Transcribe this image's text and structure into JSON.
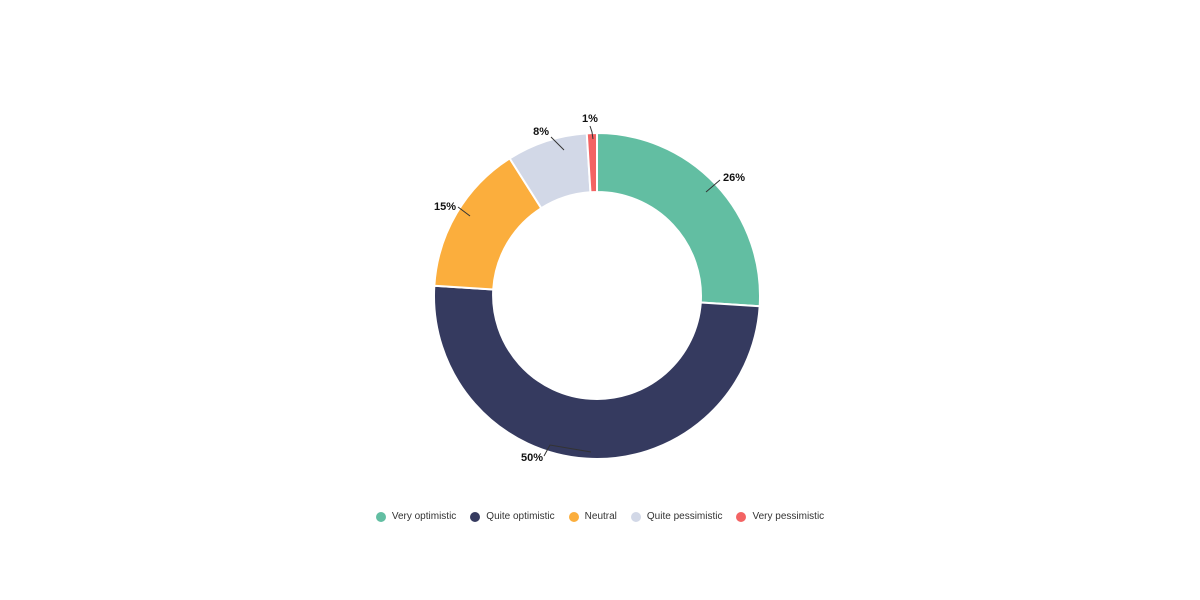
{
  "chart_data": {
    "type": "pie",
    "subtype": "donut",
    "categories": [
      "Very optimistic",
      "Quite optimistic",
      "Neutral",
      "Quite pessimistic",
      "Very pessimistic"
    ],
    "values": [
      26,
      50,
      15,
      8,
      1
    ],
    "labels": [
      "26%",
      "50%",
      "15%",
      "8%",
      "1%"
    ],
    "colors": [
      "#62BEA2",
      "#353A5F",
      "#FBAE3D",
      "#D2D8E7",
      "#F36363"
    ],
    "unit": "%",
    "title": "",
    "start_angle_deg": 0,
    "direction": "clockwise",
    "inner_radius_ratio": 0.64,
    "legend_position": "bottom",
    "background_color": "#FFFFFF",
    "label_color": "#111111",
    "legend_text_color": "#333333"
  }
}
